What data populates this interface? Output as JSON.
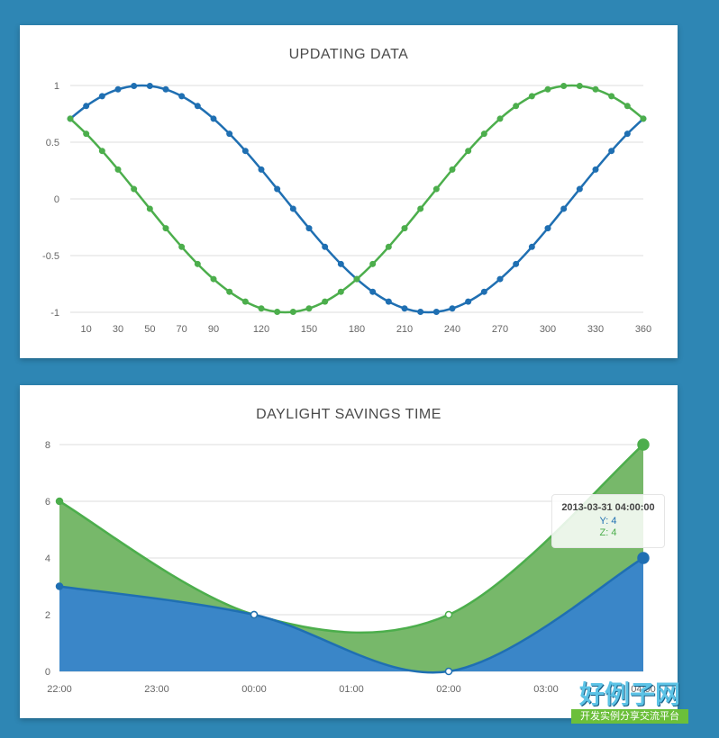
{
  "colors": {
    "blue": "#1f6fb2",
    "green": "#4cae4c",
    "area_blue": "#3a86c8",
    "area_green": "#77b86a"
  },
  "chart_data": [
    {
      "type": "line",
      "title": "UPDATING DATA",
      "xlim": [
        0,
        360
      ],
      "ylim": [
        -1,
        1
      ],
      "x_ticks": [
        10,
        30,
        50,
        70,
        90,
        120,
        150,
        180,
        210,
        240,
        270,
        300,
        330,
        360
      ],
      "y_ticks": [
        "1",
        "0.5",
        "0",
        "-0.5",
        "-1"
      ],
      "x": [
        0,
        10,
        20,
        30,
        40,
        50,
        60,
        70,
        80,
        90,
        100,
        110,
        120,
        130,
        140,
        150,
        160,
        170,
        180,
        190,
        200,
        210,
        220,
        230,
        240,
        250,
        260,
        270,
        280,
        290,
        300,
        310,
        320,
        330,
        340,
        350,
        360
      ],
      "series": [
        {
          "color": "#1f6fb2",
          "values": [
            0.707,
            0.819,
            0.906,
            0.966,
            0.996,
            0.996,
            0.966,
            0.906,
            0.819,
            0.707,
            0.574,
            0.423,
            0.259,
            0.087,
            -0.087,
            -0.259,
            -0.423,
            -0.574,
            -0.707,
            -0.819,
            -0.906,
            -0.966,
            -0.996,
            -0.996,
            -0.966,
            -0.906,
            -0.819,
            -0.707,
            -0.574,
            -0.423,
            -0.259,
            -0.087,
            0.087,
            0.259,
            0.423,
            0.574,
            0.707
          ]
        },
        {
          "color": "#4cae4c",
          "values": [
            0.707,
            0.574,
            0.423,
            0.259,
            0.087,
            -0.087,
            -0.259,
            -0.423,
            -0.574,
            -0.707,
            -0.819,
            -0.906,
            -0.966,
            -0.996,
            -0.996,
            -0.966,
            -0.906,
            -0.819,
            -0.707,
            -0.574,
            -0.423,
            -0.259,
            -0.087,
            0.087,
            0.259,
            0.423,
            0.574,
            0.707,
            0.819,
            0.906,
            0.966,
            0.996,
            0.996,
            0.966,
            0.906,
            0.819,
            0.707
          ]
        }
      ]
    },
    {
      "type": "area",
      "title": "DAYLIGHT SAVINGS TIME",
      "ylim": [
        0,
        8
      ],
      "y_ticks": [
        "8",
        "6",
        "4",
        "2",
        "0"
      ],
      "categories": [
        "22:00",
        "23:00",
        "00:00",
        "01:00",
        "02:00",
        "03:00",
        "04:00"
      ],
      "points": [
        {
          "x": "22:00",
          "y": 3,
          "z": 6
        },
        {
          "x": "00:00",
          "y": 2,
          "z": 2
        },
        {
          "x": "02:00",
          "y": 0,
          "z": 2
        },
        {
          "x": "04:00",
          "y": 4,
          "z": 8
        }
      ],
      "series": [
        {
          "name": "Y",
          "color": "#1f6fb2"
        },
        {
          "name": "Z",
          "color": "#4cae4c"
        }
      ]
    }
  ],
  "tooltip": {
    "title": "2013-03-31 04:00:00",
    "y_text": "Y: 4",
    "z_text": "Z: 4"
  },
  "watermark": {
    "main": "好例子网",
    "sub": "开发实例分享交流平台"
  }
}
